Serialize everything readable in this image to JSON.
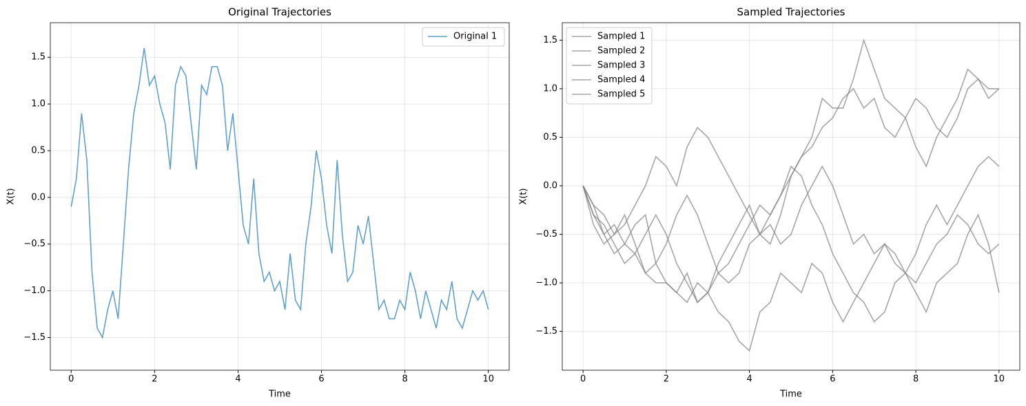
{
  "chart_data": [
    {
      "type": "line",
      "title": "Original Trajectories",
      "xlabel": "Time",
      "ylabel": "X(t)",
      "x": [
        0,
        0.125,
        0.25,
        0.375,
        0.5,
        0.625,
        0.75,
        0.875,
        1,
        1.125,
        1.25,
        1.375,
        1.5,
        1.625,
        1.75,
        1.875,
        2,
        2.125,
        2.25,
        2.375,
        2.5,
        2.625,
        2.75,
        2.875,
        3,
        3.125,
        3.25,
        3.375,
        3.5,
        3.625,
        3.75,
        3.875,
        4,
        4.125,
        4.25,
        4.375,
        4.5,
        4.625,
        4.75,
        4.875,
        5,
        5.125,
        5.25,
        5.375,
        5.5,
        5.625,
        5.75,
        5.875,
        6,
        6.125,
        6.25,
        6.375,
        6.5,
        6.625,
        6.75,
        6.875,
        7,
        7.125,
        7.25,
        7.375,
        7.5,
        7.625,
        7.75,
        7.875,
        8,
        8.125,
        8.25,
        8.375,
        8.5,
        8.625,
        8.75,
        8.875,
        9,
        9.125,
        9.25,
        9.375,
        9.5,
        9.625,
        9.75,
        9.875,
        10
      ],
      "series": [
        {
          "name": "Original 1",
          "color": "#1f77b4",
          "values": [
            -0.1,
            0.2,
            0.9,
            0.4,
            -0.8,
            -1.4,
            -1.5,
            -1.2,
            -1.0,
            -1.3,
            -0.5,
            0.3,
            0.9,
            1.2,
            1.6,
            1.2,
            1.3,
            1.0,
            0.8,
            0.3,
            1.2,
            1.4,
            1.3,
            0.8,
            0.3,
            1.2,
            1.1,
            1.4,
            1.4,
            1.2,
            0.5,
            0.9,
            0.3,
            -0.3,
            -0.5,
            0.2,
            -0.6,
            -0.9,
            -0.8,
            -1.0,
            -0.9,
            -1.2,
            -0.6,
            -1.1,
            -1.2,
            -0.5,
            -0.1,
            0.5,
            0.2,
            -0.3,
            -0.6,
            0.4,
            -0.4,
            -0.9,
            -0.8,
            -0.3,
            -0.5,
            -0.2,
            -0.7,
            -1.2,
            -1.1,
            -1.3,
            -1.3,
            -1.1,
            -1.2,
            -0.8,
            -1.0,
            -1.3,
            -1.0,
            -1.2,
            -1.4,
            -1.1,
            -1.2,
            -0.9,
            -1.3,
            -1.4,
            -1.2,
            -1.0,
            -1.1,
            -1.0,
            -1.2
          ]
        }
      ],
      "xlim": [
        -0.5,
        10.5
      ],
      "ylim": [
        -1.85,
        1.87
      ],
      "xticks": [
        0,
        2,
        4,
        6,
        8,
        10
      ],
      "yticks": [
        {
          "value": -1.5,
          "label": "−1.5"
        },
        {
          "value": -1.0,
          "label": "−1.0"
        },
        {
          "value": -0.5,
          "label": "−0.5"
        },
        {
          "value": 0,
          "label": "0.0"
        },
        0.5,
        {
          "value": 1.0,
          "label": "1.0"
        },
        1.5
      ],
      "grid": true,
      "legend": "upper right"
    },
    {
      "type": "line",
      "title": "Sampled Trajectories",
      "xlabel": "Time",
      "ylabel": "X(t)",
      "x": [
        0,
        0.25,
        0.5,
        0.75,
        1,
        1.25,
        1.5,
        1.75,
        2,
        2.25,
        2.5,
        2.75,
        3,
        3.25,
        3.5,
        3.75,
        4,
        4.25,
        4.5,
        4.75,
        5,
        5.25,
        5.5,
        5.75,
        6,
        6.25,
        6.5,
        6.75,
        7,
        7.25,
        7.5,
        7.75,
        8,
        8.25,
        8.5,
        8.75,
        9,
        9.25,
        9.5,
        9.75,
        10
      ],
      "series": [
        {
          "name": "Sampled 1",
          "color": "#808080",
          "values": [
            0,
            -0.3,
            -0.4,
            -0.6,
            -0.8,
            -0.7,
            -0.9,
            -1.0,
            -1.0,
            -1.1,
            -0.9,
            -1.2,
            -1.1,
            -0.8,
            -0.6,
            -0.4,
            -0.2,
            -0.5,
            -0.6,
            -0.3,
            0.1,
            0.3,
            0.5,
            0.9,
            0.8,
            0.8,
            1.1,
            1.5,
            1.2,
            0.9,
            0.8,
            0.7,
            0.9,
            0.8,
            0.6,
            0.5,
            0.7,
            1.0,
            1.1,
            1.0,
            1.0
          ]
        },
        {
          "name": "Sampled 2",
          "color": "#808080",
          "values": [
            0,
            -0.2,
            -0.5,
            -0.7,
            -0.6,
            -0.4,
            -0.3,
            -0.8,
            -1.0,
            -1.1,
            -1.2,
            -1.0,
            -1.1,
            -1.3,
            -1.4,
            -1.6,
            -1.7,
            -1.3,
            -1.2,
            -0.9,
            -1.0,
            -1.1,
            -0.8,
            -0.9,
            -1.2,
            -1.4,
            -1.2,
            -1.0,
            -0.8,
            -0.6,
            -0.7,
            -0.9,
            -1.1,
            -1.3,
            -1.0,
            -0.9,
            -0.8,
            -0.5,
            -0.3,
            -0.6,
            -1.1
          ]
        },
        {
          "name": "Sampled 3",
          "color": "#808080",
          "values": [
            0,
            -0.2,
            -0.3,
            -0.5,
            -0.4,
            -0.2,
            0.0,
            0.3,
            0.2,
            0.0,
            0.4,
            0.6,
            0.5,
            0.3,
            0.1,
            -0.1,
            -0.3,
            -0.5,
            -0.4,
            -0.6,
            -0.5,
            -0.2,
            0.0,
            0.2,
            0.0,
            -0.3,
            -0.6,
            -0.5,
            -0.7,
            -0.6,
            -0.8,
            -0.9,
            -1.0,
            -0.8,
            -0.6,
            -0.5,
            -0.3,
            -0.4,
            -0.6,
            -0.7,
            -0.6
          ]
        },
        {
          "name": "Sampled 4",
          "color": "#808080",
          "values": [
            0,
            -0.4,
            -0.6,
            -0.5,
            -0.3,
            -0.6,
            -0.9,
            -0.8,
            -0.6,
            -0.3,
            -0.1,
            -0.3,
            -0.6,
            -0.9,
            -1.0,
            -0.9,
            -0.6,
            -0.5,
            -0.3,
            -0.1,
            0.1,
            0.3,
            0.4,
            0.6,
            0.7,
            0.9,
            1.0,
            0.8,
            0.9,
            0.6,
            0.5,
            0.7,
            0.4,
            0.2,
            0.5,
            0.7,
            0.9,
            1.2,
            1.1,
            0.9,
            1.0
          ]
        },
        {
          "name": "Sampled 5",
          "color": "#808080",
          "values": [
            0,
            -0.3,
            -0.5,
            -0.4,
            -0.6,
            -0.7,
            -0.5,
            -0.3,
            -0.5,
            -0.8,
            -1.0,
            -1.2,
            -1.1,
            -0.9,
            -0.8,
            -0.6,
            -0.4,
            -0.2,
            -0.3,
            -0.1,
            0.2,
            0.1,
            -0.2,
            -0.4,
            -0.7,
            -0.9,
            -1.1,
            -1.2,
            -1.4,
            -1.3,
            -1.0,
            -0.9,
            -0.7,
            -0.4,
            -0.2,
            -0.4,
            -0.2,
            0.0,
            0.2,
            0.3,
            0.2
          ]
        }
      ],
      "xlim": [
        -0.5,
        10.5
      ],
      "ylim": [
        -1.9,
        1.68
      ],
      "xticks": [
        0,
        2,
        4,
        6,
        8,
        10
      ],
      "yticks": [
        {
          "value": -1.5,
          "label": "−1.5"
        },
        {
          "value": -1.0,
          "label": "−1.0"
        },
        {
          "value": -0.5,
          "label": "−0.5"
        },
        {
          "value": 0,
          "label": "0.0"
        },
        0.5,
        {
          "value": 1.0,
          "label": "1.0"
        },
        1.5
      ],
      "grid": true,
      "legend": "upper left"
    }
  ]
}
